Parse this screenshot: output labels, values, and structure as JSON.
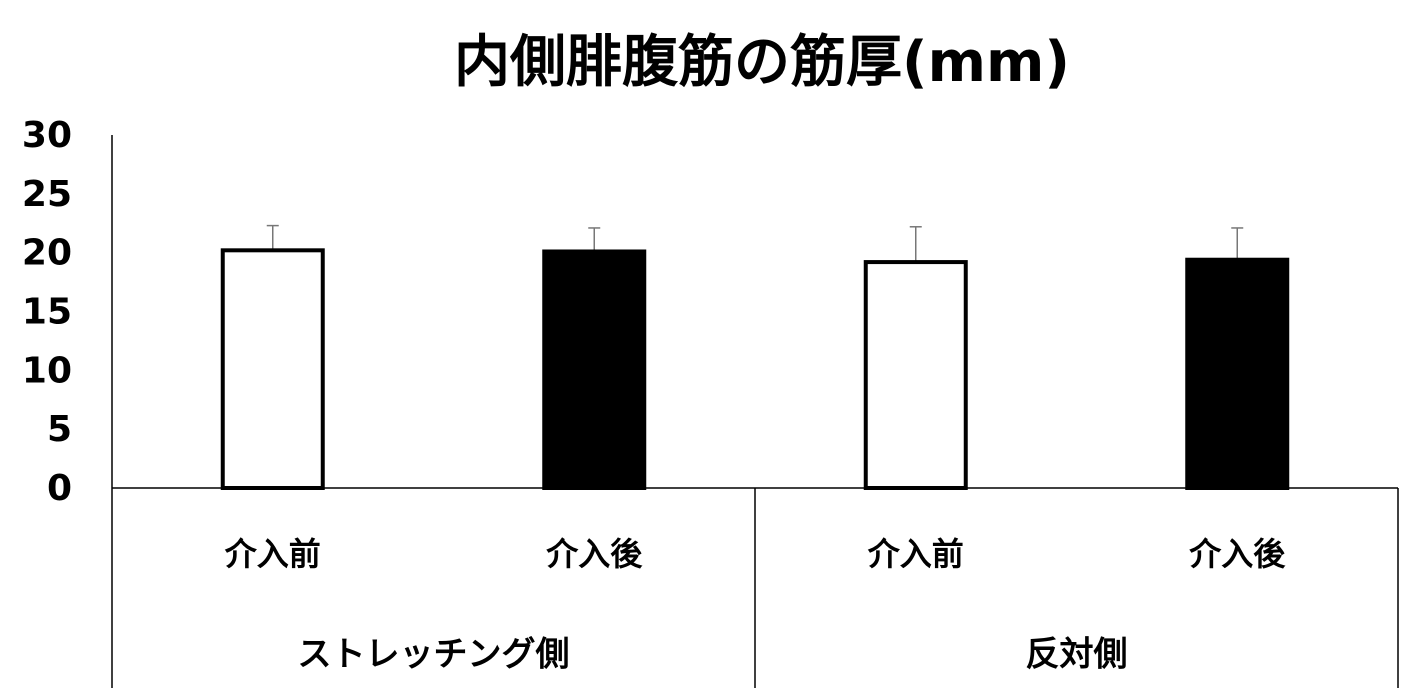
{
  "chart_data": {
    "type": "bar",
    "title": "内側腓腹筋の筋厚(mm)",
    "groups": [
      {
        "name": "ストレッチング側",
        "categories": [
          "介入前",
          "介入後"
        ],
        "values": [
          20.2,
          20.1
        ],
        "errors": [
          2.1,
          2.0
        ]
      },
      {
        "name": "反対側",
        "categories": [
          "介入前",
          "介入後"
        ],
        "values": [
          19.2,
          19.4
        ],
        "errors": [
          3.0,
          2.7
        ]
      }
    ],
    "colors": [
      "#ffffff",
      "#000000"
    ],
    "ylim": [
      0,
      30
    ],
    "yticks": [
      0,
      5,
      10,
      15,
      20,
      25,
      30
    ]
  }
}
